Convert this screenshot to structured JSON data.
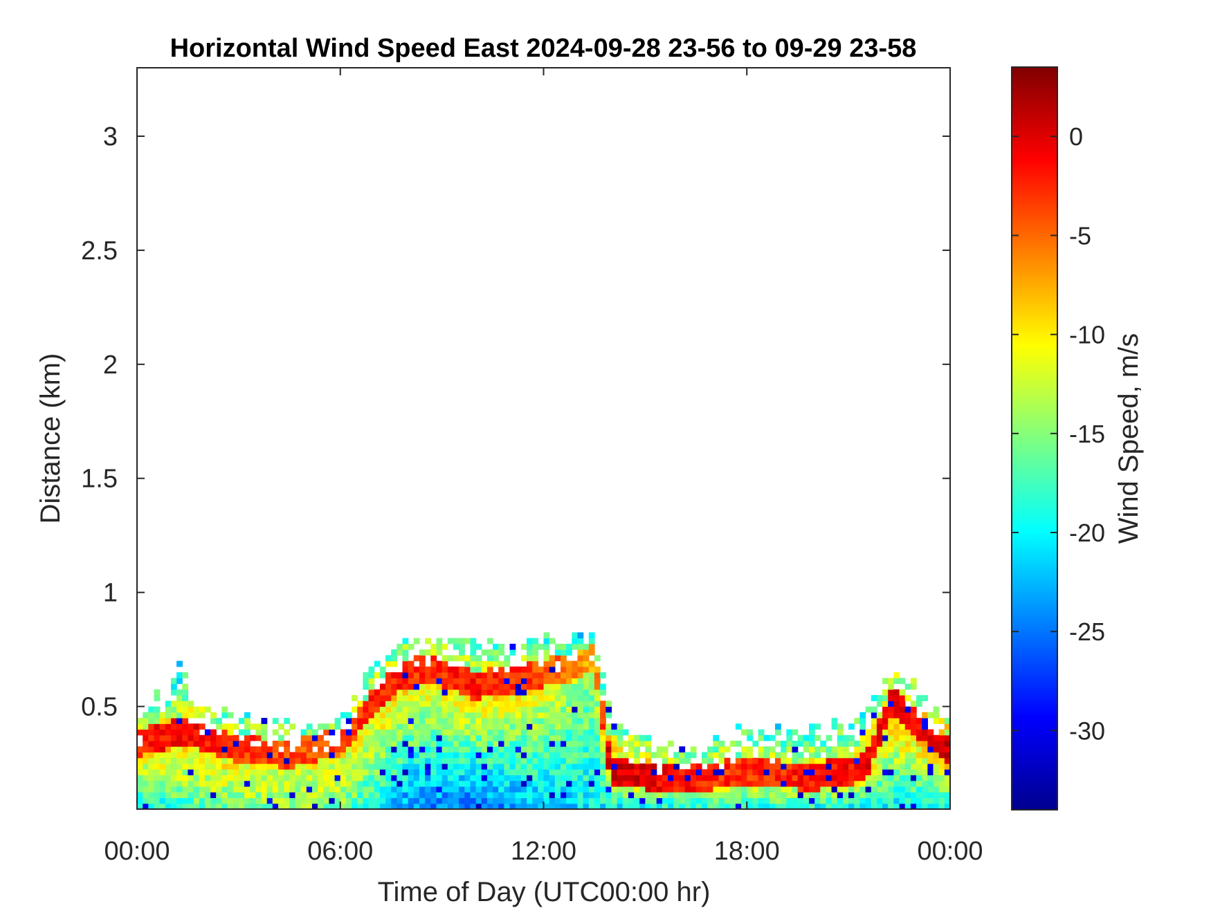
{
  "chart_data": {
    "type": "heatmap",
    "title": "Horizontal Wind Speed East 2024-09-28 23-56 to 09-29 23-58",
    "xlabel": "Time of Day (UTC00:00 hr)",
    "ylabel": "Distance (km)",
    "colorbar_label": "Wind Speed, m/s",
    "colormap": "jet",
    "x_range_hours": [
      0,
      24
    ],
    "xlim": [
      0,
      24
    ],
    "ylim": [
      0.05,
      3.3
    ],
    "clim": [
      -34,
      3.5
    ],
    "x_ticks": [
      {
        "value": 0,
        "label": "00:00"
      },
      {
        "value": 6,
        "label": "06:00"
      },
      {
        "value": 12,
        "label": "12:00"
      },
      {
        "value": 18,
        "label": "18:00"
      },
      {
        "value": 24,
        "label": "00:00"
      }
    ],
    "y_ticks": [
      {
        "value": 0.5,
        "label": "0.5"
      },
      {
        "value": 1,
        "label": "1"
      },
      {
        "value": 1.5,
        "label": "1.5"
      },
      {
        "value": 2,
        "label": "2"
      },
      {
        "value": 2.5,
        "label": "2.5"
      },
      {
        "value": 3,
        "label": "3"
      }
    ],
    "colorbar_ticks": [
      {
        "value": 0,
        "label": "0"
      },
      {
        "value": -5,
        "label": "-5"
      },
      {
        "value": -10,
        "label": "-10"
      },
      {
        "value": -15,
        "label": "-15"
      },
      {
        "value": -20,
        "label": "-20"
      },
      {
        "value": -25,
        "label": "-25"
      },
      {
        "value": -30,
        "label": "-30"
      }
    ],
    "grid": false,
    "top_of_data_km": [
      {
        "hour": 0,
        "km": 0.4
      },
      {
        "hour": 0.5,
        "km": 0.55
      },
      {
        "hour": 1.0,
        "km": 0.6
      },
      {
        "hour": 1.3,
        "km": 0.68
      },
      {
        "hour": 1.6,
        "km": 0.52
      },
      {
        "hour": 2.0,
        "km": 0.5
      },
      {
        "hour": 3.0,
        "km": 0.45
      },
      {
        "hour": 4.0,
        "km": 0.42
      },
      {
        "hour": 5.0,
        "km": 0.4
      },
      {
        "hour": 6.0,
        "km": 0.42
      },
      {
        "hour": 6.5,
        "km": 0.58
      },
      {
        "hour": 7.0,
        "km": 0.68
      },
      {
        "hour": 7.5,
        "km": 0.75
      },
      {
        "hour": 8.5,
        "km": 0.8
      },
      {
        "hour": 9.5,
        "km": 0.8
      },
      {
        "hour": 10.5,
        "km": 0.78
      },
      {
        "hour": 11.5,
        "km": 0.8
      },
      {
        "hour": 12.5,
        "km": 0.78
      },
      {
        "hour": 13.5,
        "km": 0.8
      },
      {
        "hour": 14.0,
        "km": 0.45
      },
      {
        "hour": 15.0,
        "km": 0.35
      },
      {
        "hour": 16.0,
        "km": 0.3
      },
      {
        "hour": 17.0,
        "km": 0.32
      },
      {
        "hour": 18.0,
        "km": 0.4
      },
      {
        "hour": 19.0,
        "km": 0.38
      },
      {
        "hour": 20.0,
        "km": 0.4
      },
      {
        "hour": 21.0,
        "km": 0.42
      },
      {
        "hour": 21.5,
        "km": 0.5
      },
      {
        "hour": 22.0,
        "km": 0.62
      },
      {
        "hour": 22.5,
        "km": 0.65
      },
      {
        "hour": 23.0,
        "km": 0.58
      },
      {
        "hour": 23.5,
        "km": 0.48
      },
      {
        "hour": 24.0,
        "km": 0.45
      }
    ],
    "jet_core": [
      {
        "hour": 0,
        "km": 0.33,
        "value": -2
      },
      {
        "hour": 1.5,
        "km": 0.38,
        "value": -1
      },
      {
        "hour": 3.0,
        "km": 0.3,
        "value": -3
      },
      {
        "hour": 4.5,
        "km": 0.28,
        "value": -4
      },
      {
        "hour": 6.0,
        "km": 0.33,
        "value": -4
      },
      {
        "hour": 7.5,
        "km": 0.6,
        "value": -2
      },
      {
        "hour": 8.5,
        "km": 0.66,
        "value": -3
      },
      {
        "hour": 10.0,
        "km": 0.58,
        "value": -2
      },
      {
        "hour": 11.5,
        "km": 0.62,
        "value": -3
      },
      {
        "hour": 12.8,
        "km": 0.66,
        "value": -6
      },
      {
        "hour": 13.5,
        "km": 0.7,
        "value": -8
      },
      {
        "hour": 14.0,
        "km": 0.2,
        "value": 1
      },
      {
        "hour": 16.0,
        "km": 0.17,
        "value": -2
      },
      {
        "hour": 18.0,
        "km": 0.2,
        "value": -3
      },
      {
        "hour": 20.0,
        "km": 0.18,
        "value": -2
      },
      {
        "hour": 21.5,
        "km": 0.22,
        "value": -1
      },
      {
        "hour": 22.3,
        "km": 0.52,
        "value": -1
      },
      {
        "hour": 23.0,
        "km": 0.42,
        "value": -1
      },
      {
        "hour": 24.0,
        "km": 0.28,
        "value": 1
      }
    ],
    "surface_value_mps": [
      {
        "hour": 0,
        "value": -20
      },
      {
        "hour": 3,
        "value": -15
      },
      {
        "hour": 6,
        "value": -15
      },
      {
        "hour": 8,
        "value": -24
      },
      {
        "hour": 10,
        "value": -25
      },
      {
        "hour": 12,
        "value": -22
      },
      {
        "hour": 14,
        "value": -20
      },
      {
        "hour": 18,
        "value": -18
      },
      {
        "hour": 22,
        "value": -20
      },
      {
        "hour": 24,
        "value": -20
      }
    ]
  }
}
